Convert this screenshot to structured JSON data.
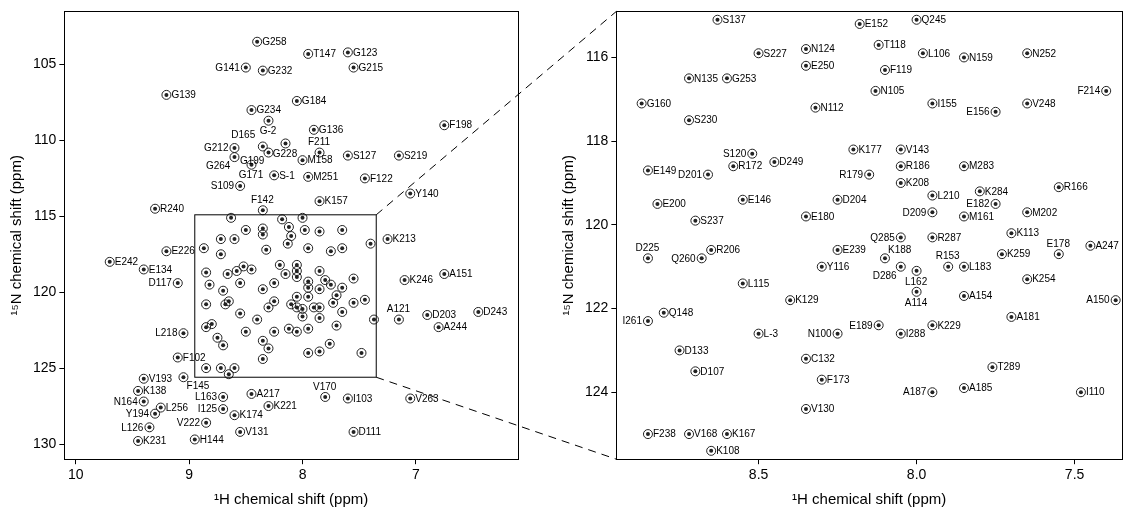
{
  "chart_data": [
    {
      "type": "scatter",
      "x_label": "¹H chemical shift (ppm)",
      "y_label": "¹⁵N chemical shift (ppm)",
      "xlim": [
        10.1,
        6.1
      ],
      "ylim": [
        131,
        101.5
      ],
      "xticks": [
        10,
        9,
        8,
        7
      ],
      "yticks": [
        105,
        110,
        115,
        120,
        125,
        130
      ],
      "grid": false,
      "color": "#222222",
      "marker": "contour",
      "peaks": [
        {
          "label": "G258",
          "x": 8.4,
          "y": 103.5
        },
        {
          "label": "G141",
          "x": 8.5,
          "y": 105.2
        },
        {
          "label": "G232",
          "x": 8.35,
          "y": 105.4
        },
        {
          "label": "T147",
          "x": 7.95,
          "y": 104.3
        },
        {
          "label": "G123",
          "x": 7.6,
          "y": 104.2
        },
        {
          "label": "G215",
          "x": 7.55,
          "y": 105.2
        },
        {
          "label": "G139",
          "x": 9.2,
          "y": 107.0
        },
        {
          "label": "G184",
          "x": 8.05,
          "y": 107.4
        },
        {
          "label": "G234",
          "x": 8.45,
          "y": 108.0
        },
        {
          "label": "G-2",
          "x": 8.3,
          "y": 108.7
        },
        {
          "label": "G136",
          "x": 7.9,
          "y": 109.3
        },
        {
          "label": "G228",
          "x": 8.15,
          "y": 110.2
        },
        {
          "label": "D165",
          "x": 8.35,
          "y": 110.4
        },
        {
          "label": "G212",
          "x": 8.6,
          "y": 110.5
        },
        {
          "label": "G199",
          "x": 8.3,
          "y": 110.8
        },
        {
          "label": "G264",
          "x": 8.6,
          "y": 111.1
        },
        {
          "label": "M158",
          "x": 8.0,
          "y": 111.3
        },
        {
          "label": "F211",
          "x": 7.85,
          "y": 110.8
        },
        {
          "label": "S127",
          "x": 7.6,
          "y": 111.0
        },
        {
          "label": "S219",
          "x": 7.15,
          "y": 111.0
        },
        {
          "label": "F198",
          "x": 6.75,
          "y": 109.0
        },
        {
          "label": "G171",
          "x": 8.45,
          "y": 111.6
        },
        {
          "label": "M251",
          "x": 7.95,
          "y": 112.4
        },
        {
          "label": "F122",
          "x": 7.45,
          "y": 112.5
        },
        {
          "label": "S109",
          "x": 8.55,
          "y": 113.0
        },
        {
          "label": "S-1",
          "x": 8.25,
          "y": 112.3
        },
        {
          "label": "K157",
          "x": 7.85,
          "y": 114.0
        },
        {
          "label": "F142",
          "x": 8.35,
          "y": 114.6
        },
        {
          "label": "R240",
          "x": 9.3,
          "y": 114.5
        },
        {
          "label": "Y140",
          "x": 7.05,
          "y": 113.5
        },
        {
          "label": "K213",
          "x": 7.25,
          "y": 116.5
        },
        {
          "label": "E242",
          "x": 9.7,
          "y": 118.0
        },
        {
          "label": "E226",
          "x": 9.2,
          "y": 117.3
        },
        {
          "label": "E134",
          "x": 9.4,
          "y": 118.5
        },
        {
          "label": "D117",
          "x": 9.1,
          "y": 119.4
        },
        {
          "label": "K246",
          "x": 7.1,
          "y": 119.2
        },
        {
          "label": "A151",
          "x": 6.75,
          "y": 118.8
        },
        {
          "label": "D203",
          "x": 6.9,
          "y": 121.5
        },
        {
          "label": "D243",
          "x": 6.45,
          "y": 121.3
        },
        {
          "label": "A121",
          "x": 7.15,
          "y": 121.8
        },
        {
          "label": "A244",
          "x": 6.8,
          "y": 122.3
        },
        {
          "label": "L218",
          "x": 9.05,
          "y": 122.7
        },
        {
          "label": "F102",
          "x": 9.1,
          "y": 124.3
        },
        {
          "label": "V193",
          "x": 9.4,
          "y": 125.7
        },
        {
          "label": "F145",
          "x": 9.05,
          "y": 125.6
        },
        {
          "label": "K138",
          "x": 9.45,
          "y": 126.5
        },
        {
          "label": "L163",
          "x": 8.7,
          "y": 126.9
        },
        {
          "label": "A217",
          "x": 8.45,
          "y": 126.7
        },
        {
          "label": "N164",
          "x": 9.4,
          "y": 127.2
        },
        {
          "label": "L256",
          "x": 9.25,
          "y": 127.6
        },
        {
          "label": "I125",
          "x": 8.7,
          "y": 127.7
        },
        {
          "label": "K221",
          "x": 8.3,
          "y": 127.5
        },
        {
          "label": "K174",
          "x": 8.6,
          "y": 128.1
        },
        {
          "label": "Y194",
          "x": 9.3,
          "y": 128.0
        },
        {
          "label": "V222",
          "x": 8.85,
          "y": 128.6
        },
        {
          "label": "L126",
          "x": 9.35,
          "y": 128.9
        },
        {
          "label": "V131",
          "x": 8.55,
          "y": 129.2
        },
        {
          "label": "H144",
          "x": 8.95,
          "y": 129.7
        },
        {
          "label": "K231",
          "x": 9.45,
          "y": 129.8
        },
        {
          "label": "V170",
          "x": 7.8,
          "y": 126.9
        },
        {
          "label": "I103",
          "x": 7.6,
          "y": 127.0
        },
        {
          "label": "V263",
          "x": 7.05,
          "y": 127.0
        },
        {
          "label": "D111",
          "x": 7.55,
          "y": 129.2
        }
      ]
    },
    {
      "type": "scatter",
      "x_label": "¹H chemical shift (ppm)",
      "y_label": "¹⁵N chemical shift (ppm)",
      "xlim": [
        8.95,
        7.35
      ],
      "ylim": [
        125.6,
        114.9
      ],
      "xticks": [
        8.5,
        {
          "value": 8,
          "label": "8.0"
        },
        7.5
      ],
      "yticks": [
        116,
        118,
        120,
        122,
        124
      ],
      "grid": false,
      "color": "#222222",
      "marker": "contour",
      "peaks": [
        {
          "label": "S137",
          "x": 8.63,
          "y": 115.1
        },
        {
          "label": "E152",
          "x": 8.18,
          "y": 115.2
        },
        {
          "label": "Q245",
          "x": 8.0,
          "y": 115.1
        },
        {
          "label": "S227",
          "x": 8.5,
          "y": 115.9
        },
        {
          "label": "N124",
          "x": 8.35,
          "y": 115.8
        },
        {
          "label": "T118",
          "x": 8.12,
          "y": 115.7
        },
        {
          "label": "L106",
          "x": 7.98,
          "y": 115.9
        },
        {
          "label": "N159",
          "x": 7.85,
          "y": 116.0
        },
        {
          "label": "N252",
          "x": 7.65,
          "y": 115.9
        },
        {
          "label": "E250",
          "x": 8.35,
          "y": 116.2
        },
        {
          "label": "F119",
          "x": 8.1,
          "y": 116.3
        },
        {
          "label": "N135",
          "x": 8.72,
          "y": 116.5
        },
        {
          "label": "G253",
          "x": 8.6,
          "y": 116.5
        },
        {
          "label": "N105",
          "x": 8.13,
          "y": 116.8
        },
        {
          "label": "I155",
          "x": 7.95,
          "y": 117.1
        },
        {
          "label": "E156",
          "x": 7.75,
          "y": 117.3
        },
        {
          "label": "V248",
          "x": 7.65,
          "y": 117.1
        },
        {
          "label": "F214",
          "x": 7.4,
          "y": 116.8
        },
        {
          "label": "G160",
          "x": 8.87,
          "y": 117.1
        },
        {
          "label": "S230",
          "x": 8.72,
          "y": 117.5
        },
        {
          "label": "N112",
          "x": 8.32,
          "y": 117.2
        },
        {
          "label": "S120",
          "x": 8.52,
          "y": 118.3
        },
        {
          "label": "K177",
          "x": 8.2,
          "y": 118.2
        },
        {
          "label": "V143",
          "x": 8.05,
          "y": 118.2
        },
        {
          "label": "E149",
          "x": 8.85,
          "y": 118.7
        },
        {
          "label": "D201",
          "x": 8.66,
          "y": 118.8
        },
        {
          "label": "R172",
          "x": 8.58,
          "y": 118.6
        },
        {
          "label": "D249",
          "x": 8.45,
          "y": 118.5
        },
        {
          "label": "R186",
          "x": 8.05,
          "y": 118.6
        },
        {
          "label": "R179",
          "x": 8.15,
          "y": 118.8
        },
        {
          "label": "M283",
          "x": 7.85,
          "y": 118.6
        },
        {
          "label": "K208",
          "x": 8.05,
          "y": 119.0
        },
        {
          "label": "L210",
          "x": 7.95,
          "y": 119.3
        },
        {
          "label": "K284",
          "x": 7.8,
          "y": 119.2
        },
        {
          "label": "E182",
          "x": 7.75,
          "y": 119.5
        },
        {
          "label": "R166",
          "x": 7.55,
          "y": 119.1
        },
        {
          "label": "D204",
          "x": 8.25,
          "y": 119.4
        },
        {
          "label": "E200",
          "x": 8.82,
          "y": 119.5
        },
        {
          "label": "E146",
          "x": 8.55,
          "y": 119.4
        },
        {
          "label": "E180",
          "x": 8.35,
          "y": 119.8
        },
        {
          "label": "D209",
          "x": 7.95,
          "y": 119.7
        },
        {
          "label": "M161",
          "x": 7.85,
          "y": 119.8
        },
        {
          "label": "M202",
          "x": 7.65,
          "y": 119.7
        },
        {
          "label": "S237",
          "x": 8.7,
          "y": 119.9
        },
        {
          "label": "K113",
          "x": 7.7,
          "y": 120.2
        },
        {
          "label": "Q285",
          "x": 8.05,
          "y": 120.3
        },
        {
          "label": "R287",
          "x": 7.95,
          "y": 120.3
        },
        {
          "label": "R206",
          "x": 8.65,
          "y": 120.6
        },
        {
          "label": "Q260",
          "x": 8.68,
          "y": 120.8
        },
        {
          "label": "E239",
          "x": 8.25,
          "y": 120.6
        },
        {
          "label": "D225",
          "x": 8.85,
          "y": 120.8
        },
        {
          "label": "Y116",
          "x": 8.3,
          "y": 121.0
        },
        {
          "label": "K188",
          "x": 8.1,
          "y": 120.8
        },
        {
          "label": "D286",
          "x": 8.05,
          "y": 121.0
        },
        {
          "label": "L162",
          "x": 8.0,
          "y": 121.1
        },
        {
          "label": "R153",
          "x": 7.9,
          "y": 121.0
        },
        {
          "label": "L183",
          "x": 7.85,
          "y": 121.0
        },
        {
          "label": "K259",
          "x": 7.73,
          "y": 120.7
        },
        {
          "label": "E178",
          "x": 7.55,
          "y": 120.7
        },
        {
          "label": "A247",
          "x": 7.45,
          "y": 120.5
        },
        {
          "label": "L115",
          "x": 8.55,
          "y": 121.4
        },
        {
          "label": "A114",
          "x": 8.0,
          "y": 121.6
        },
        {
          "label": "A154",
          "x": 7.85,
          "y": 121.7
        },
        {
          "label": "K254",
          "x": 7.65,
          "y": 121.3
        },
        {
          "label": "K129",
          "x": 8.4,
          "y": 121.8
        },
        {
          "label": "A150",
          "x": 7.37,
          "y": 121.8
        },
        {
          "label": "Q148",
          "x": 8.8,
          "y": 122.1
        },
        {
          "label": "A181",
          "x": 7.7,
          "y": 122.2
        },
        {
          "label": "I261",
          "x": 8.85,
          "y": 122.3
        },
        {
          "label": "E189",
          "x": 8.12,
          "y": 122.4
        },
        {
          "label": "I288",
          "x": 8.05,
          "y": 122.6
        },
        {
          "label": "K229",
          "x": 7.95,
          "y": 122.4
        },
        {
          "label": "L-3",
          "x": 8.5,
          "y": 122.6
        },
        {
          "label": "N100",
          "x": 8.25,
          "y": 122.6
        },
        {
          "label": "D133",
          "x": 8.75,
          "y": 123.0
        },
        {
          "label": "D107",
          "x": 8.7,
          "y": 123.5
        },
        {
          "label": "C132",
          "x": 8.35,
          "y": 123.2
        },
        {
          "label": "T289",
          "x": 7.76,
          "y": 123.4
        },
        {
          "label": "F173",
          "x": 8.3,
          "y": 123.7
        },
        {
          "label": "A187",
          "x": 7.95,
          "y": 124.0
        },
        {
          "label": "A185",
          "x": 7.85,
          "y": 123.9
        },
        {
          "label": "I110",
          "x": 7.48,
          "y": 124.0
        },
        {
          "label": "V130",
          "x": 8.35,
          "y": 124.4
        },
        {
          "label": "F238",
          "x": 8.85,
          "y": 125.0
        },
        {
          "label": "V168",
          "x": 8.72,
          "y": 125.0
        },
        {
          "label": "K167",
          "x": 8.6,
          "y": 125.0
        },
        {
          "label": "K108",
          "x": 8.65,
          "y": 125.4
        }
      ]
    }
  ]
}
